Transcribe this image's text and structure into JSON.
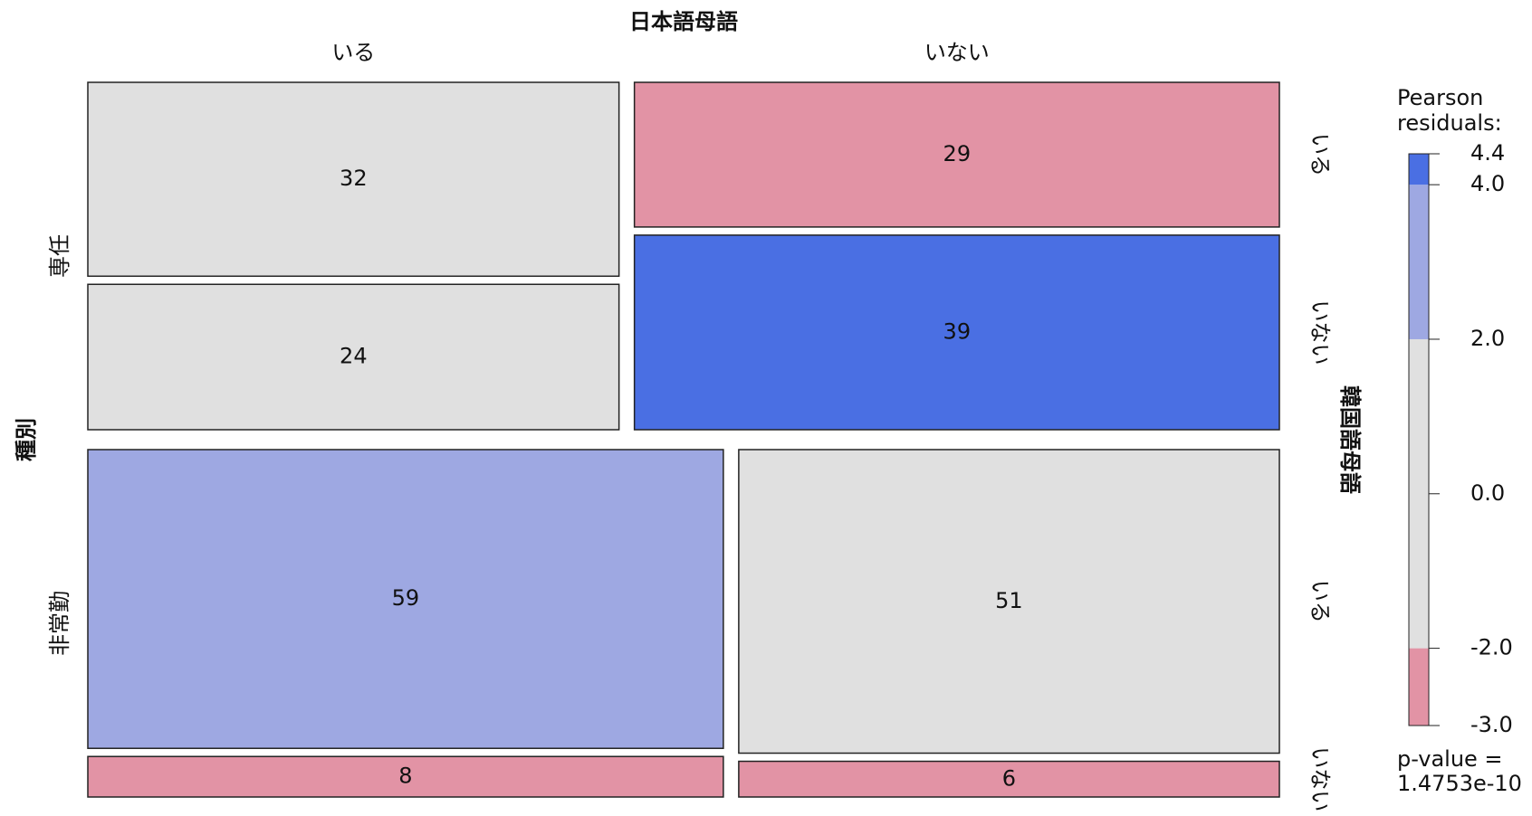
{
  "chart_data": {
    "type": "mosaic",
    "x_label": "日本語母語",
    "y_label": "種別",
    "z_label": "韓国語母語",
    "row_categories": [
      "専任",
      "非常勤"
    ],
    "col_categories": [
      "いる",
      "いない"
    ],
    "sub_categories": [
      "いる",
      "いない"
    ],
    "cells": [
      [
        [
          32,
          24
        ],
        [
          29,
          39
        ]
      ],
      [
        [
          59,
          8
        ],
        [
          51,
          6
        ]
      ]
    ],
    "cell_colors": [
      [
        [
          "#e0e0e0",
          "#e0e0e0"
        ],
        [
          "#e293a5",
          "#4a6fe3"
        ]
      ],
      [
        [
          "#9ea8e2",
          "#e293a5"
        ],
        [
          "#e0e0e0",
          "#e293a5"
        ]
      ]
    ],
    "legend": {
      "title": [
        "Pearson",
        "residuals:"
      ],
      "lim": [
        -3,
        4.4
      ],
      "ticks": [
        {
          "value": -3,
          "label": "-3.0"
        },
        {
          "value": -2,
          "label": "-2.0"
        },
        {
          "value": 0,
          "label": "0.0"
        },
        {
          "value": 2,
          "label": "2.0"
        },
        {
          "value": 4,
          "label": "4.0"
        },
        4.4
      ],
      "bands": [
        {
          "from": -3,
          "to": -2,
          "color": "#e293a5"
        },
        {
          "from": -2,
          "to": 2,
          "color": "#e0e0e0"
        },
        {
          "from": 2,
          "to": 4,
          "color": "#9ea8e2"
        },
        {
          "from": 4,
          "to": 4.4,
          "color": "#4a6fe3"
        }
      ],
      "p_value": [
        "p-value =",
        "1.4753e-10"
      ]
    }
  }
}
